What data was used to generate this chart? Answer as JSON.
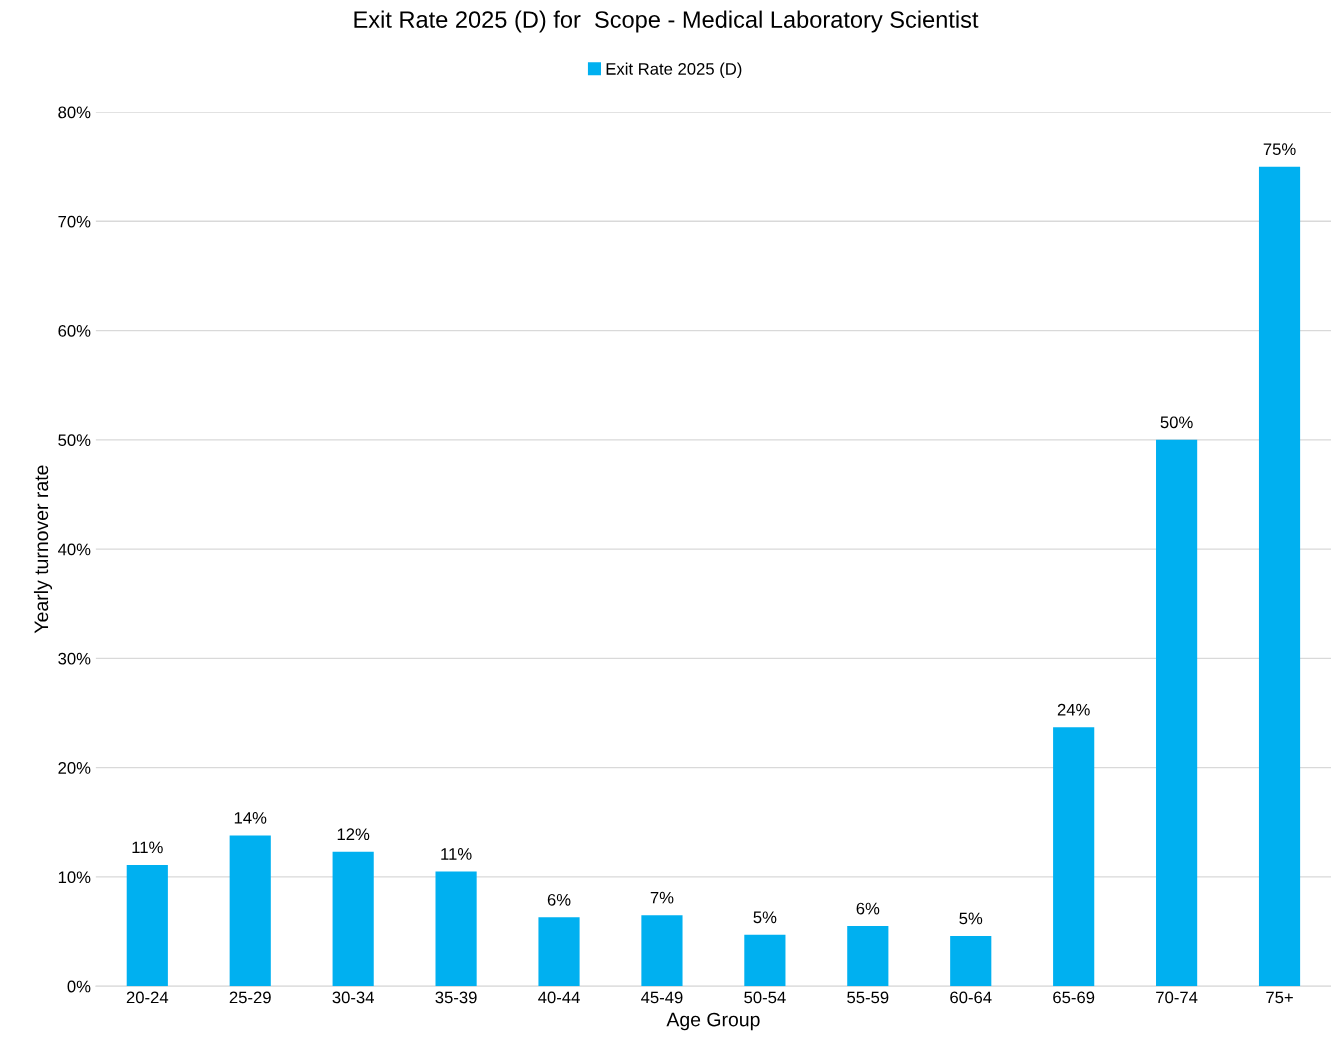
{
  "chart_data": {
    "type": "bar",
    "title": "Exit Rate 2025 (D) for  Scope - Medical Laboratory Scientist",
    "xlabel": "Age Group",
    "ylabel": "Yearly turnover rate",
    "categories": [
      "20-24",
      "25-29",
      "30-34",
      "35-39",
      "40-44",
      "45-49",
      "50-54",
      "55-59",
      "60-64",
      "65-69",
      "70-74",
      "75+"
    ],
    "series": [
      {
        "name": "Exit Rate 2025 (D)",
        "color": "#00b0f0",
        "values": [
          11.1,
          13.8,
          12.3,
          10.5,
          6.3,
          6.5,
          4.7,
          5.5,
          4.6,
          23.7,
          50.0,
          75.0
        ],
        "value_labels": [
          "11%",
          "14%",
          "12%",
          "11%",
          "6%",
          "7%",
          "5%",
          "6%",
          "5%",
          "24%",
          "50%",
          "75%"
        ]
      }
    ],
    "ylim": [
      0,
      80
    ],
    "yticks": [
      {
        "value": 0,
        "label": "0%"
      },
      {
        "value": 10,
        "label": "10%"
      },
      {
        "value": 20,
        "label": "20%"
      },
      {
        "value": 30,
        "label": "30%"
      },
      {
        "value": 40,
        "label": "40%"
      },
      {
        "value": 50,
        "label": "50%"
      },
      {
        "value": 60,
        "label": "60%"
      },
      {
        "value": 70,
        "label": "70%"
      },
      {
        "value": 80,
        "label": "80%"
      }
    ],
    "grid": "y",
    "legend": "top"
  }
}
